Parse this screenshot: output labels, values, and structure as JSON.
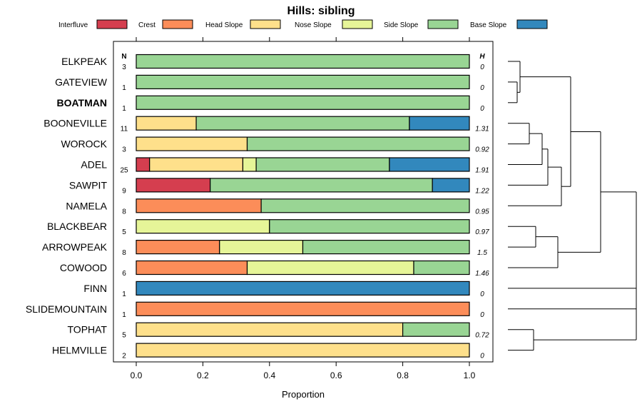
{
  "chart_data": {
    "type": "stacked-bar",
    "title": "Hills: sibling",
    "xlabel": "Proportion",
    "ylabel": "",
    "xlim": [
      0,
      1
    ],
    "x_ticks": [
      "0.0",
      "0.2",
      "0.4",
      "0.6",
      "0.8",
      "1.0"
    ],
    "n_header": "N",
    "h_header": "H",
    "legend": [
      {
        "name": "Interfluve",
        "color": "#D53E4F"
      },
      {
        "name": "Crest",
        "color": "#FC8D59"
      },
      {
        "name": "Head Slope",
        "color": "#FEE08B"
      },
      {
        "name": "Nose Slope",
        "color": "#E6F598"
      },
      {
        "name": "Side Slope",
        "color": "#99D594"
      },
      {
        "name": "Base Slope",
        "color": "#3288BD"
      }
    ],
    "rows": [
      {
        "name": "ELKPEAK",
        "n": "3",
        "h": "0",
        "bold": false,
        "values": [
          0,
          0,
          0,
          0,
          1.0,
          0
        ]
      },
      {
        "name": "GATEVIEW",
        "n": "1",
        "h": "0",
        "bold": false,
        "values": [
          0,
          0,
          0,
          0,
          1.0,
          0
        ]
      },
      {
        "name": "BOATMAN",
        "n": "1",
        "h": "0",
        "bold": true,
        "values": [
          0,
          0,
          0,
          0,
          1.0,
          0
        ]
      },
      {
        "name": "BOONEVILLE",
        "n": "11",
        "h": "1.31",
        "bold": false,
        "values": [
          0,
          0,
          0.18,
          0,
          0.64,
          0.18
        ]
      },
      {
        "name": "WOROCK",
        "n": "3",
        "h": "0.92",
        "bold": false,
        "values": [
          0,
          0,
          0.333,
          0,
          0.667,
          0
        ]
      },
      {
        "name": "ADEL",
        "n": "25",
        "h": "1.91",
        "bold": false,
        "values": [
          0.04,
          0,
          0.28,
          0.04,
          0.4,
          0.24
        ]
      },
      {
        "name": "SAWPIT",
        "n": "9",
        "h": "1.22",
        "bold": false,
        "values": [
          0.222,
          0,
          0,
          0,
          0.667,
          0.111
        ]
      },
      {
        "name": "NAMELA",
        "n": "8",
        "h": "0.95",
        "bold": false,
        "values": [
          0,
          0.375,
          0,
          0,
          0.625,
          0
        ]
      },
      {
        "name": "BLACKBEAR",
        "n": "5",
        "h": "0.97",
        "bold": false,
        "values": [
          0,
          0,
          0,
          0.4,
          0.6,
          0
        ]
      },
      {
        "name": "ARROWPEAK",
        "n": "8",
        "h": "1.5",
        "bold": false,
        "values": [
          0,
          0.25,
          0,
          0.25,
          0.5,
          0
        ]
      },
      {
        "name": "COWOOD",
        "n": "6",
        "h": "1.46",
        "bold": false,
        "values": [
          0,
          0.333,
          0,
          0.5,
          0.167,
          0
        ]
      },
      {
        "name": "FINN",
        "n": "1",
        "h": "0",
        "bold": false,
        "values": [
          0,
          0,
          0,
          0,
          0,
          1.0
        ]
      },
      {
        "name": "SLIDEMOUNTAIN",
        "n": "1",
        "h": "0",
        "bold": false,
        "values": [
          0,
          1.0,
          0,
          0,
          0,
          0
        ]
      },
      {
        "name": "TOPHAT",
        "n": "5",
        "h": "0.72",
        "bold": false,
        "values": [
          0,
          0,
          0.8,
          0,
          0.2,
          0
        ]
      },
      {
        "name": "HELMVILLE",
        "n": "2",
        "h": "0",
        "bold": false,
        "values": [
          0,
          0,
          1.0,
          0,
          0,
          0
        ]
      }
    ]
  }
}
